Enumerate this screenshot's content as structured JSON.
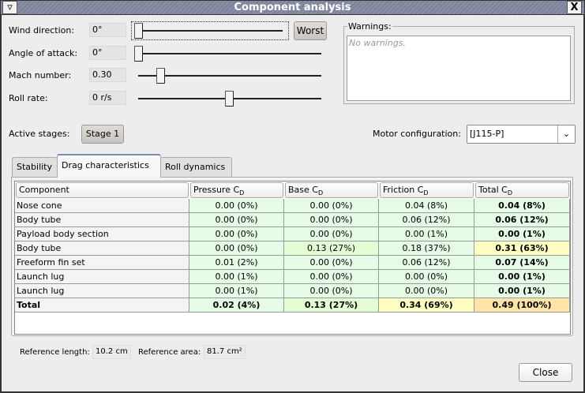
{
  "window": {
    "title": "Component analysis",
    "menu_icon": "triangle-down-icon",
    "close_icon": "close-x-icon"
  },
  "params": [
    {
      "label": "Wind direction:",
      "value": "0°",
      "slider_fraction": 0.0
    },
    {
      "label": "Angle of attack:",
      "value": "0°",
      "slider_fraction": 0.0
    },
    {
      "label": "Mach number:",
      "value": "0.30",
      "slider_fraction": 0.12
    },
    {
      "label": "Roll rate:",
      "value": "0 r/s",
      "slider_fraction": 0.5
    }
  ],
  "worst_button": "Worst",
  "warnings": {
    "legend": "Warnings:",
    "text": "No warnings."
  },
  "stages": {
    "label": "Active stages:",
    "button": "Stage 1"
  },
  "motor": {
    "label": "Motor configuration:",
    "value": "[J115-P]"
  },
  "tabs": [
    {
      "label": "Stability",
      "active": false
    },
    {
      "label": "Drag characteristics",
      "active": true
    },
    {
      "label": "Roll dynamics",
      "active": false
    }
  ],
  "table": {
    "headers": [
      {
        "text": "Component",
        "sub": ""
      },
      {
        "text": "Pressure C",
        "sub": "D"
      },
      {
        "text": "Base C",
        "sub": "D"
      },
      {
        "text": "Friction C",
        "sub": "D"
      },
      {
        "text": "Total C",
        "sub": "D"
      }
    ],
    "rows": [
      {
        "name": "Nose cone",
        "cells": [
          "0.00 (0%)",
          "0.00 (0%)",
          "0.04 (8%)",
          "0.04 (8%)"
        ],
        "colors": [
          "#e6fbe6",
          "#e6fbe6",
          "#e6fbe6",
          "#e6fbe6"
        ]
      },
      {
        "name": "Body tube",
        "cells": [
          "0.00 (0%)",
          "0.00 (0%)",
          "0.06 (12%)",
          "0.06 (12%)"
        ],
        "colors": [
          "#e6fbe6",
          "#e6fbe6",
          "#e6fbe6",
          "#e6fbe6"
        ]
      },
      {
        "name": "Payload body section",
        "cells": [
          "0.00 (0%)",
          "0.00 (0%)",
          "0.00 (1%)",
          "0.00 (1%)"
        ],
        "colors": [
          "#e6fbe6",
          "#e6fbe6",
          "#e6fbe6",
          "#e6fbe6"
        ]
      },
      {
        "name": "Body tube",
        "cells": [
          "0.00 (0%)",
          "0.13 (27%)",
          "0.18 (37%)",
          "0.31 (63%)"
        ],
        "colors": [
          "#e6fbe6",
          "#e4fcd4",
          "#e6fbe6",
          "#ffffc4"
        ]
      },
      {
        "name": "Freeform fin set",
        "cells": [
          "0.01 (2%)",
          "0.00 (0%)",
          "0.06 (12%)",
          "0.07 (14%)"
        ],
        "colors": [
          "#e6fbe6",
          "#e6fbe6",
          "#e6fbe6",
          "#e6fbe6"
        ]
      },
      {
        "name": "Launch lug",
        "cells": [
          "0.00 (1%)",
          "0.00 (0%)",
          "0.00 (0%)",
          "0.00 (1%)"
        ],
        "colors": [
          "#e6fbe6",
          "#e6fbe6",
          "#e6fbe6",
          "#e6fbe6"
        ]
      },
      {
        "name": "Launch lug",
        "cells": [
          "0.00 (1%)",
          "0.00 (0%)",
          "0.00 (0%)",
          "0.00 (1%)"
        ],
        "colors": [
          "#e6fbe6",
          "#e6fbe6",
          "#e6fbe6",
          "#e6fbe6"
        ]
      },
      {
        "name": "Total",
        "cells": [
          "0.02 (4%)",
          "0.13 (27%)",
          "0.34 (69%)",
          "0.49 (100%)"
        ],
        "colors": [
          "#e6fbe6",
          "#e4fcd4",
          "#ffffc4",
          "#ffe4a8"
        ],
        "bold": true
      }
    ]
  },
  "reference": {
    "length_label": "Reference length:",
    "length_value": "10.2 cm",
    "area_label": "Reference area:",
    "area_value": "81.7 cm²"
  },
  "close_button": "Close"
}
